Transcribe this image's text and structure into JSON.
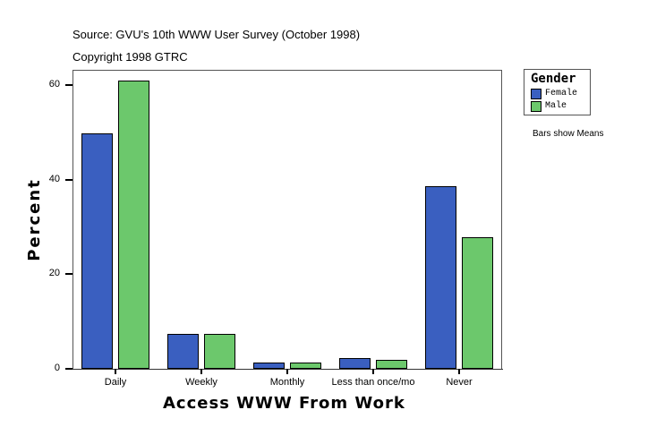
{
  "header": {
    "source": "Source: GVU's 10th WWW User Survey (October 1998)",
    "copyright": "Copyright 1998 GTRC"
  },
  "legend": {
    "title": "Gender",
    "items": [
      {
        "label": "Female",
        "color": "#3a5fc0"
      },
      {
        "label": "Male",
        "color": "#6cc86c"
      }
    ]
  },
  "note": "Bars show Means",
  "axes": {
    "ylabel": "Percent",
    "xlabel": "Access WWW From Work",
    "yticks": [
      "0",
      "20",
      "40",
      "60"
    ]
  },
  "chart_data": {
    "type": "bar",
    "title": "",
    "xlabel": "Access WWW From Work",
    "ylabel": "Percent",
    "ylim": [
      0,
      63
    ],
    "grid": false,
    "legend_position": "right",
    "categories": [
      "Daily",
      "Weekly",
      "Monthly",
      "Less than once/mo",
      "Never"
    ],
    "series": [
      {
        "name": "Female",
        "color": "#3a5fc0",
        "values": [
          49.8,
          7.4,
          1.3,
          2.3,
          38.6
        ]
      },
      {
        "name": "Male",
        "color": "#6cc86c",
        "values": [
          60.9,
          7.4,
          1.3,
          1.9,
          27.8
        ]
      }
    ],
    "annotations": [
      "Source: GVU's 10th WWW User Survey (October 1998)",
      "Copyright 1998 GTRC",
      "Bars show Means"
    ]
  }
}
